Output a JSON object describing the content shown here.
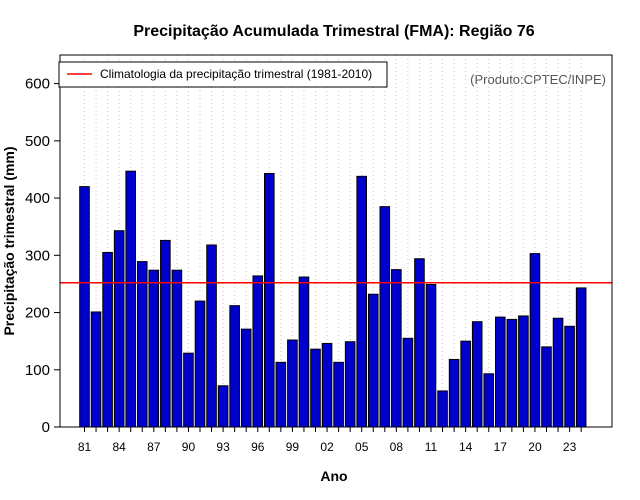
{
  "chart_data": {
    "type": "bar",
    "title": "Precipitação Acumulada Trimestral (FMA): Região 76",
    "xlabel": "Ano",
    "ylabel": "Precipitação trimestral (mm)",
    "ylim": [
      0,
      650
    ],
    "yticks": [
      0,
      100,
      200,
      300,
      400,
      500,
      600
    ],
    "categories": [
      "81",
      "82",
      "83",
      "84",
      "85",
      "86",
      "87",
      "88",
      "89",
      "90",
      "91",
      "92",
      "93",
      "94",
      "95",
      "96",
      "97",
      "98",
      "99",
      "00",
      "01",
      "02",
      "03",
      "04",
      "05",
      "06",
      "07",
      "08",
      "09",
      "10",
      "11",
      "12",
      "13",
      "14",
      "15",
      "16",
      "17",
      "18",
      "19",
      "20",
      "21",
      "22",
      "23",
      "24"
    ],
    "xtick_labels": [
      "81",
      "84",
      "87",
      "90",
      "93",
      "96",
      "99",
      "02",
      "05",
      "08",
      "11",
      "14",
      "17",
      "20",
      "23"
    ],
    "values": [
      420,
      201,
      305,
      343,
      447,
      289,
      274,
      326,
      274,
      129,
      220,
      318,
      72,
      212,
      171,
      264,
      443,
      113,
      152,
      262,
      136,
      146,
      113,
      149,
      438,
      232,
      385,
      275,
      155,
      294,
      249,
      63,
      118,
      150,
      184,
      93,
      192,
      188,
      194,
      303,
      140,
      190,
      176,
      243
    ],
    "bar_color": "#0000cd",
    "bar_edge_color": "#000000",
    "climatology": {
      "label": "Climatologia da precipitação trimestral (1981-2010)",
      "value": 252,
      "color": "#ff0000"
    },
    "legend_position": "top-left",
    "credit": "(Produto:CPTEC/INPE)",
    "grid": "vertical-dotted"
  }
}
